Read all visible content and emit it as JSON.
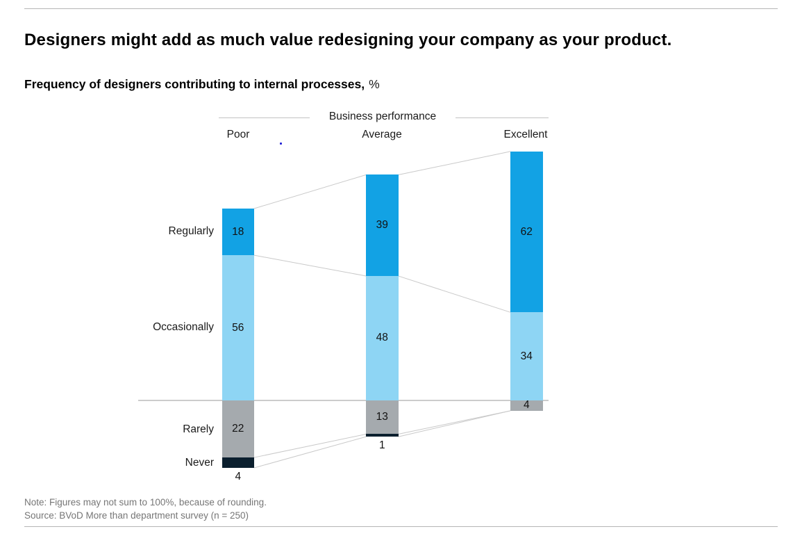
{
  "title": "Designers might add as much value redesigning your company as your product.",
  "subtitle": {
    "bold": "Frequency of designers contributing to internal processes,",
    "unit": "%"
  },
  "chart_data": {
    "type": "bar",
    "variant": "diverging-stacked-columns-with-slope-connectors",
    "group_header": "Business performance",
    "categories": [
      "Poor",
      "Average",
      "Excellent"
    ],
    "row_axis_note": "stack baseline sits between Occasionally and Rarely; Rarely/Never plotted below the line",
    "unit": "%",
    "series": [
      {
        "name": "Regularly",
        "color": "#12a2e4",
        "values": [
          18,
          39,
          62
        ]
      },
      {
        "name": "Occasionally",
        "color": "#8ed5f4",
        "values": [
          56,
          48,
          34
        ]
      },
      {
        "name": "Rarely",
        "color": "#a5aaae",
        "values": [
          22,
          13,
          4
        ]
      },
      {
        "name": "Never",
        "color": "#0b1f2e",
        "values": [
          4,
          1,
          0
        ]
      }
    ],
    "layout": {
      "gridlines": false,
      "legend": "row labels at left of first column",
      "connectors_between_columns": true,
      "baseline_color": "#999999",
      "connector_color": "#c9c9c9"
    }
  },
  "artifact": {
    "dot_color": "#2323d6"
  },
  "footer": {
    "note": "Note: Figures may not sum to 100%, because of rounding.",
    "source": "Source: BVoD More than department survey (n = 250)"
  }
}
